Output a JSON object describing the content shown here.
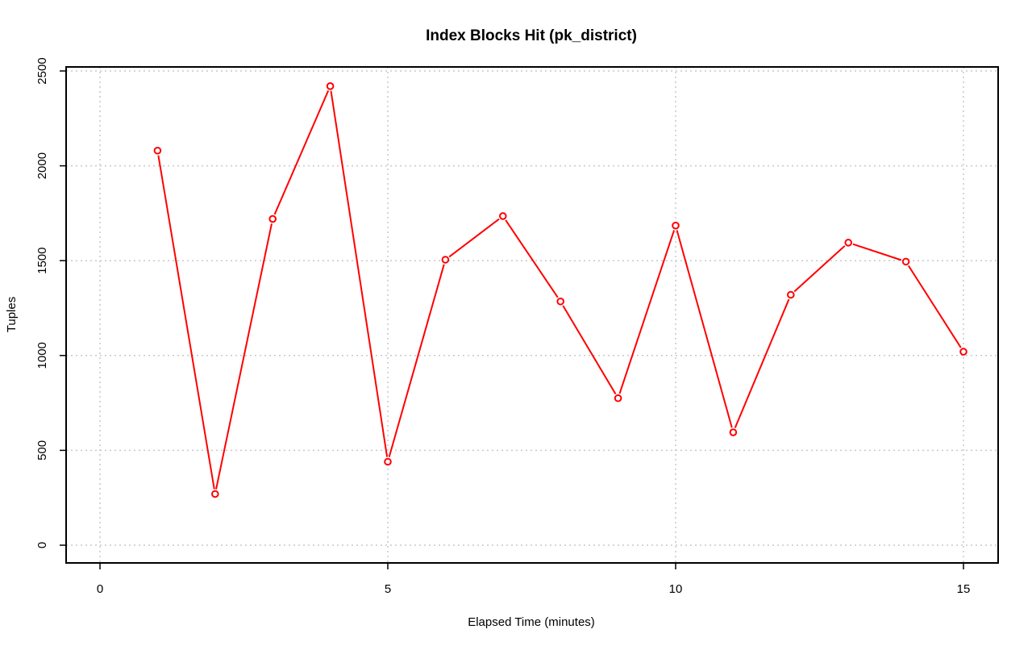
{
  "chart_data": {
    "type": "line",
    "title": "Index Blocks Hit (pk_district)",
    "xlabel": "Elapsed Time (minutes)",
    "ylabel": "Tuples",
    "xlim": [
      0,
      15
    ],
    "ylim": [
      0,
      2500
    ],
    "x_ticks": [
      0,
      5,
      10,
      15
    ],
    "y_ticks": [
      0,
      500,
      1000,
      1500,
      2000,
      2500
    ],
    "x_tick_labels": [
      "0",
      "5",
      "10",
      "15"
    ],
    "y_tick_labels": [
      "0",
      "500",
      "1000",
      "1500",
      "2000",
      "2500"
    ],
    "grid": true,
    "legend": "none",
    "series": [
      {
        "color": "#ff0000",
        "x": [
          1,
          2,
          3,
          4,
          5,
          6,
          7,
          8,
          9,
          10,
          11,
          12,
          13,
          14,
          15
        ],
        "values": [
          2080,
          270,
          1720,
          2420,
          440,
          1505,
          1735,
          1285,
          775,
          1685,
          595,
          1320,
          1595,
          1495,
          1020
        ]
      }
    ]
  }
}
